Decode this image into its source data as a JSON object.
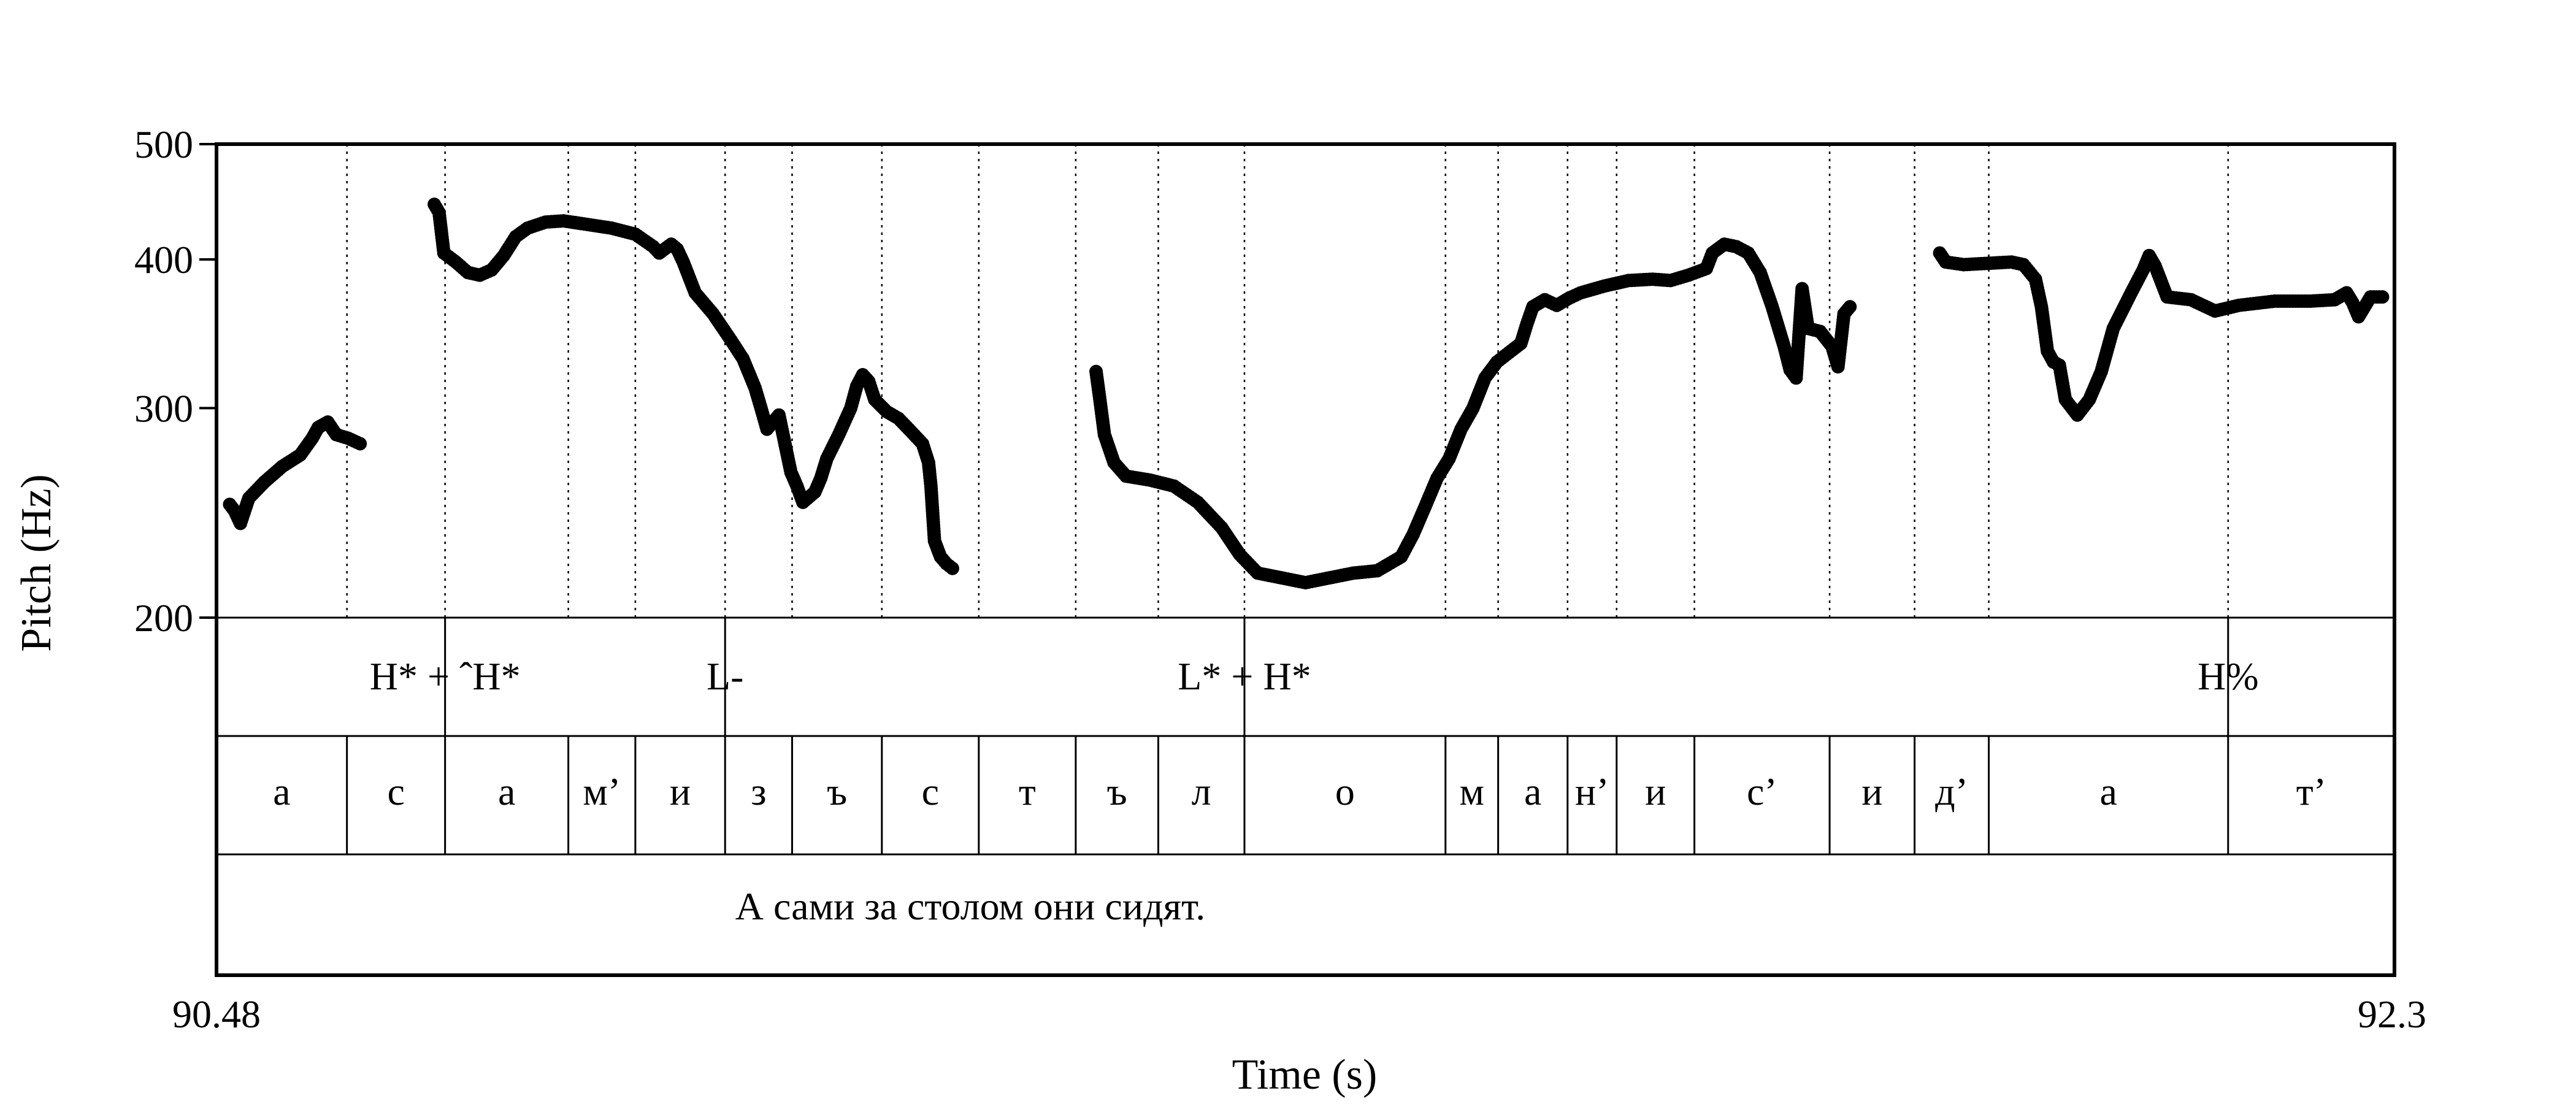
{
  "chart_data": {
    "type": "scatter",
    "title": "",
    "ylabel": "Pitch (Hz)",
    "xlabel": "Time (s)",
    "y_scale": "log",
    "ylim": [
      200,
      500
    ],
    "yticks": [
      200,
      300,
      400,
      500
    ],
    "xlim": [
      90.48,
      92.3
    ],
    "x_tick_labels": [
      "90.48",
      "92.3"
    ],
    "grid": false,
    "legend": "none",
    "marker_color": "#000000",
    "segments": [
      [
        [
          90.491,
          249
        ],
        [
          90.495,
          246
        ],
        [
          90.5,
          240
        ],
        [
          90.507,
          252
        ],
        [
          90.52,
          260
        ],
        [
          90.535,
          268
        ],
        [
          90.55,
          274
        ],
        [
          90.56,
          283
        ],
        [
          90.565,
          289
        ],
        [
          90.573,
          292
        ],
        [
          90.58,
          285
        ],
        [
          90.59,
          283
        ],
        [
          90.6,
          280
        ]
      ],
      [
        [
          90.662,
          445
        ],
        [
          90.666,
          438
        ],
        [
          90.67,
          405
        ],
        [
          90.68,
          398
        ],
        [
          90.69,
          390
        ],
        [
          90.7,
          388
        ],
        [
          90.71,
          392
        ],
        [
          90.72,
          403
        ],
        [
          90.73,
          418
        ],
        [
          90.74,
          425
        ],
        [
          90.755,
          430
        ],
        [
          90.77,
          431
        ],
        [
          90.79,
          428
        ],
        [
          90.81,
          425
        ],
        [
          90.83,
          420
        ],
        [
          90.845,
          410
        ],
        [
          90.85,
          405
        ],
        [
          90.86,
          412
        ],
        [
          90.865,
          408
        ],
        [
          90.87,
          398
        ],
        [
          90.88,
          375
        ],
        [
          90.895,
          360
        ],
        [
          90.91,
          342
        ],
        [
          90.92,
          330
        ],
        [
          90.93,
          312
        ],
        [
          90.935,
          300
        ],
        [
          90.94,
          288
        ],
        [
          90.945,
          292
        ],
        [
          90.95,
          296
        ],
        [
          90.96,
          265
        ],
        [
          90.965,
          258
        ],
        [
          90.97,
          250
        ],
        [
          90.98,
          255
        ],
        [
          90.985,
          262
        ],
        [
          90.99,
          272
        ],
        [
          91.0,
          285
        ],
        [
          91.01,
          300
        ],
        [
          91.015,
          313
        ],
        [
          91.02,
          320
        ],
        [
          91.025,
          316
        ],
        [
          91.03,
          305
        ],
        [
          91.04,
          298
        ],
        [
          91.05,
          294
        ],
        [
          91.06,
          287
        ],
        [
          91.07,
          280
        ],
        [
          91.075,
          270
        ],
        [
          91.077,
          258
        ],
        [
          91.08,
          232
        ],
        [
          91.085,
          225
        ],
        [
          91.09,
          222
        ],
        [
          91.095,
          220
        ]
      ],
      [
        [
          91.215,
          322
        ],
        [
          91.218,
          306
        ],
        [
          91.222,
          285
        ],
        [
          91.23,
          270
        ],
        [
          91.24,
          263
        ],
        [
          91.26,
          261
        ],
        [
          91.28,
          258
        ],
        [
          91.3,
          250
        ],
        [
          91.32,
          238
        ],
        [
          91.335,
          226
        ],
        [
          91.35,
          218
        ],
        [
          91.37,
          216
        ],
        [
          91.39,
          214
        ],
        [
          91.41,
          216
        ],
        [
          91.43,
          218
        ],
        [
          91.45,
          219
        ],
        [
          91.47,
          225
        ],
        [
          91.48,
          235
        ],
        [
          91.49,
          248
        ],
        [
          91.5,
          262
        ],
        [
          91.51,
          272
        ],
        [
          91.52,
          288
        ],
        [
          91.53,
          300
        ],
        [
          91.54,
          318
        ],
        [
          91.55,
          328
        ],
        [
          91.56,
          334
        ],
        [
          91.57,
          340
        ],
        [
          91.575,
          353
        ],
        [
          91.58,
          365
        ],
        [
          91.59,
          370
        ],
        [
          91.6,
          366
        ],
        [
          91.61,
          371
        ],
        [
          91.62,
          375
        ],
        [
          91.64,
          380
        ],
        [
          91.66,
          384
        ],
        [
          91.68,
          385
        ],
        [
          91.695,
          384
        ],
        [
          91.71,
          388
        ],
        [
          91.725,
          393
        ],
        [
          91.73,
          405
        ],
        [
          91.74,
          412
        ],
        [
          91.75,
          410
        ],
        [
          91.76,
          405
        ],
        [
          91.77,
          390
        ],
        [
          91.78,
          365
        ],
        [
          91.79,
          338
        ],
        [
          91.795,
          323
        ],
        [
          91.8,
          318
        ],
        [
          91.805,
          378
        ],
        [
          91.81,
          350
        ],
        [
          91.82,
          348
        ],
        [
          91.83,
          338
        ],
        [
          91.835,
          325
        ],
        [
          91.84,
          360
        ],
        [
          91.845,
          365
        ]
      ],
      [
        [
          91.92,
          405
        ],
        [
          91.925,
          398
        ],
        [
          91.94,
          396
        ],
        [
          91.96,
          397
        ],
        [
          91.98,
          398
        ],
        [
          91.99,
          396
        ],
        [
          92.0,
          385
        ],
        [
          92.005,
          365
        ],
        [
          92.01,
          335
        ],
        [
          92.015,
          328
        ],
        [
          92.02,
          326
        ],
        [
          92.025,
          305
        ],
        [
          92.035,
          296
        ],
        [
          92.045,
          305
        ],
        [
          92.055,
          322
        ],
        [
          92.065,
          350
        ],
        [
          92.08,
          375
        ],
        [
          92.09,
          392
        ],
        [
          92.095,
          403
        ],
        [
          92.1,
          395
        ],
        [
          92.11,
          372
        ],
        [
          92.13,
          370
        ],
        [
          92.15,
          362
        ],
        [
          92.17,
          366
        ],
        [
          92.2,
          369
        ],
        [
          92.23,
          369
        ],
        [
          92.25,
          370
        ],
        [
          92.26,
          375
        ],
        [
          92.265,
          368
        ],
        [
          92.27,
          358
        ],
        [
          92.28,
          372
        ],
        [
          92.29,
          372
        ]
      ]
    ],
    "boundaries": [
      90.589,
      90.671,
      90.774,
      90.83,
      90.905,
      90.961,
      91.036,
      91.117,
      91.198,
      91.267,
      91.339,
      91.507,
      91.551,
      91.609,
      91.65,
      91.715,
      91.828,
      91.899,
      91.961,
      92.161
    ],
    "tone_tier": [
      {
        "t": 90.671,
        "label": "H* + ˆH*"
      },
      {
        "t": 90.905,
        "label": "L-"
      },
      {
        "t": 91.339,
        "label": "L* + H*"
      },
      {
        "t": 92.161,
        "label": "H%"
      }
    ],
    "segment_tier": [
      "а",
      "с",
      "а",
      "м’",
      "и",
      "з",
      "ъ",
      "с",
      "т",
      "ъ",
      "л",
      "о",
      "м",
      "а",
      "н’",
      "и",
      "с’",
      "и",
      "д’",
      "а",
      "т’"
    ],
    "sentence_tier": "А сами за столом они сидят."
  }
}
